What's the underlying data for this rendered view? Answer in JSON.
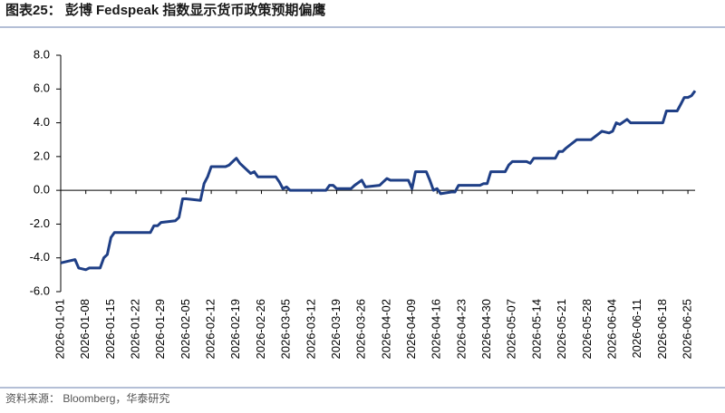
{
  "chart_data": {
    "type": "line",
    "title": "图表25： 彭博 Fedspeak 指数显示货币政策预期偏鹰",
    "source": "资料来源： Bloomberg，华泰研究",
    "x": [
      "2026-01-01",
      "2026-01-03",
      "2026-01-05",
      "2026-01-06",
      "2026-01-08",
      "2026-01-09",
      "2026-01-12",
      "2026-01-13",
      "2026-01-14",
      "2026-01-15",
      "2026-01-16",
      "2026-01-22",
      "2026-01-26",
      "2026-01-27",
      "2026-01-28",
      "2026-01-29",
      "2026-02-02",
      "2026-02-03",
      "2026-02-04",
      "2026-02-05",
      "2026-02-09",
      "2026-02-10",
      "2026-02-11",
      "2026-02-12",
      "2026-02-16",
      "2026-02-17",
      "2026-02-18",
      "2026-02-19",
      "2026-02-20",
      "2026-02-23",
      "2026-02-24",
      "2026-02-25",
      "2026-03-02",
      "2026-03-03",
      "2026-03-04",
      "2026-03-05",
      "2026-03-06",
      "2026-03-16",
      "2026-03-17",
      "2026-03-18",
      "2026-03-19",
      "2026-03-23",
      "2026-03-24",
      "2026-03-26",
      "2026-03-27",
      "2026-03-31",
      "2026-04-01",
      "2026-04-02",
      "2026-04-03",
      "2026-04-08",
      "2026-04-09",
      "2026-04-10",
      "2026-04-13",
      "2026-04-14",
      "2026-04-15",
      "2026-04-16",
      "2026-04-17",
      "2026-04-20",
      "2026-04-21",
      "2026-04-22",
      "2026-04-28",
      "2026-04-29",
      "2026-04-30",
      "2026-05-01",
      "2026-05-05",
      "2026-05-06",
      "2026-05-07",
      "2026-05-08",
      "2026-05-11",
      "2026-05-12",
      "2026-05-13",
      "2026-05-14",
      "2026-05-19",
      "2026-05-20",
      "2026-05-21",
      "2026-05-22",
      "2026-05-25",
      "2026-05-29",
      "2026-06-01",
      "2026-06-03",
      "2026-06-04",
      "2026-06-05",
      "2026-06-06",
      "2026-06-08",
      "2026-06-09",
      "2026-06-18",
      "2026-06-19",
      "2026-06-22",
      "2026-06-23",
      "2026-06-24",
      "2026-06-25",
      "2026-06-26",
      "2026-06-27"
    ],
    "series": [
      {
        "color": "#1f3f86",
        "values": [
          -4.3,
          -4.2,
          -4.1,
          -4.6,
          -4.7,
          -4.6,
          -4.6,
          -4.0,
          -3.8,
          -2.8,
          -2.5,
          -2.5,
          -2.5,
          -2.1,
          -2.1,
          -1.9,
          -1.8,
          -1.6,
          -0.5,
          -0.5,
          -0.6,
          0.4,
          0.8,
          1.4,
          1.4,
          1.5,
          1.7,
          1.9,
          1.6,
          1.0,
          1.1,
          0.8,
          0.8,
          0.5,
          0.1,
          0.2,
          0.0,
          0.0,
          0.3,
          0.3,
          0.1,
          0.1,
          0.3,
          0.6,
          0.2,
          0.3,
          0.5,
          0.7,
          0.6,
          0.6,
          0.1,
          1.1,
          1.1,
          0.6,
          0.0,
          0.1,
          -0.2,
          -0.1,
          -0.1,
          0.3,
          0.3,
          0.4,
          0.4,
          1.1,
          1.1,
          1.5,
          1.7,
          1.7,
          1.7,
          1.6,
          1.9,
          1.9,
          1.9,
          2.3,
          2.3,
          2.5,
          3.0,
          3.0,
          3.5,
          3.4,
          3.5,
          4.0,
          3.9,
          4.2,
          4.0,
          4.0,
          4.7,
          4.7,
          5.1,
          5.5,
          5.5,
          5.6,
          5.9
        ]
      }
    ],
    "xlim": [
      "2026-01-01",
      "2026-06-27"
    ],
    "xticks": [
      "2026-01-01",
      "2026-01-08",
      "2026-01-15",
      "2026-01-22",
      "2026-01-29",
      "2026-02-05",
      "2026-02-12",
      "2026-02-19",
      "2026-02-26",
      "2026-03-05",
      "2026-03-12",
      "2026-03-19",
      "2026-03-26",
      "2026-04-02",
      "2026-04-09",
      "2026-04-16",
      "2026-04-23",
      "2026-04-30",
      "2026-05-07",
      "2026-05-14",
      "2026-05-21",
      "2026-05-28",
      "2026-06-04",
      "2026-06-11",
      "2026-06-18",
      "2026-06-25"
    ],
    "ylim": [
      -6,
      8
    ],
    "yticks": [
      {
        "value": -6,
        "label": "-6.0"
      },
      {
        "value": -4,
        "label": "-4.0"
      },
      {
        "value": -2,
        "label": "-2.0"
      },
      {
        "value": 0,
        "label": "0.0"
      },
      {
        "value": 2,
        "label": "2.0"
      },
      {
        "value": 4,
        "label": "4.0"
      },
      {
        "value": 6,
        "label": "6.0"
      },
      {
        "value": 8,
        "label": "8.0"
      }
    ]
  }
}
